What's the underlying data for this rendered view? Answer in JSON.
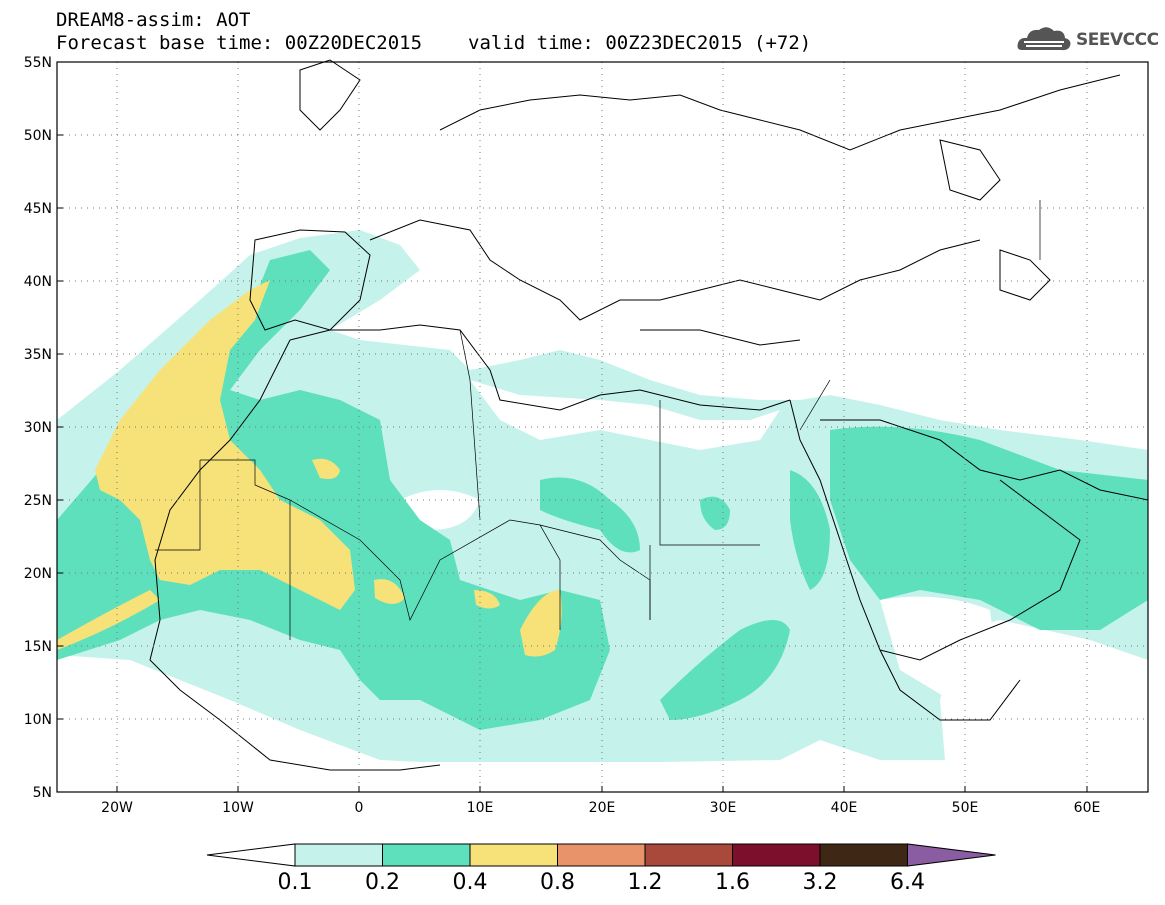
{
  "header": {
    "line1": "DREAM8-assim: AOT",
    "base_label": "Forecast base time: 00Z20DEC2015",
    "valid_label": "valid time: 00Z23DEC2015 (+72)"
  },
  "logo": {
    "text": "SEEVCCC",
    "icon": "cloud-icon"
  },
  "axes": {
    "lat_labels": [
      "55N",
      "50N",
      "45N",
      "40N",
      "35N",
      "30N",
      "25N",
      "20N",
      "15N",
      "10N",
      "5N"
    ],
    "lon_labels": [
      "20W",
      "10W",
      "0",
      "10E",
      "20E",
      "30E",
      "40E",
      "50E",
      "60E"
    ],
    "lat_range": [
      5,
      55
    ],
    "lon_range": [
      -25,
      65
    ],
    "grid": "dotted"
  },
  "colorbar": {
    "levels": [
      "0.1",
      "0.2",
      "0.4",
      "0.8",
      "1.2",
      "1.6",
      "3.2",
      "6.4"
    ],
    "colors": [
      "#ffffff",
      "#c6f2ec",
      "#5ee0bd",
      "#f7e27a",
      "#e8936a",
      "#a9493b",
      "#7c0f2b",
      "#3f2716",
      "#8a5da2"
    ]
  }
}
